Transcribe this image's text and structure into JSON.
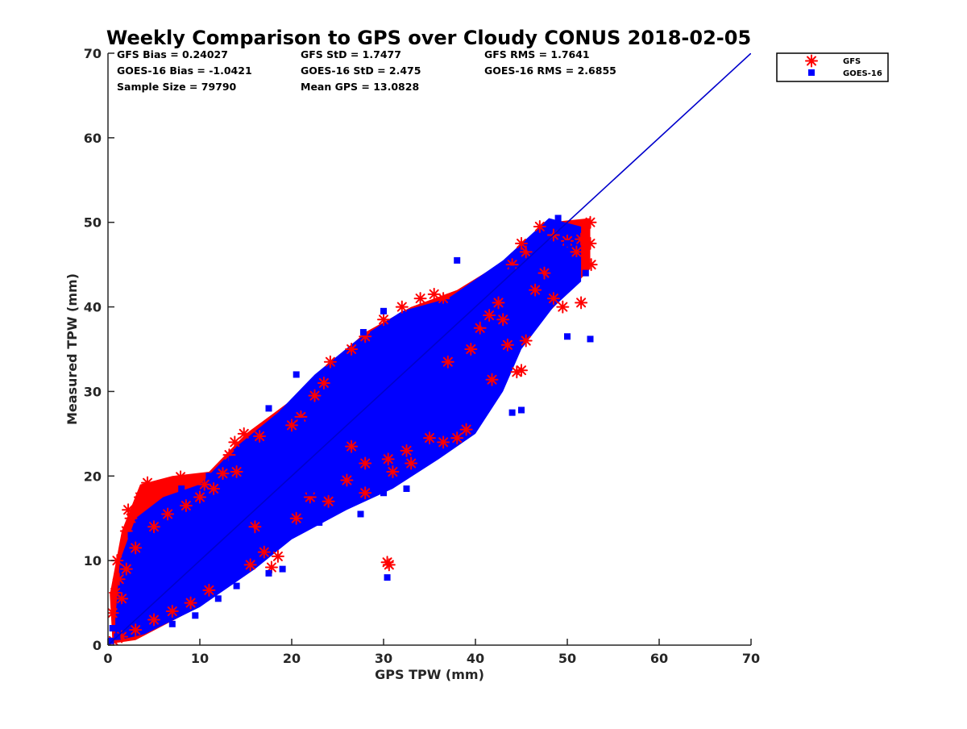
{
  "chart_data": {
    "type": "scatter",
    "title": "Weekly Comparison to GPS over Cloudy CONUS 2018-02-05",
    "xlabel": "GPS TPW (mm)",
    "ylabel": "Measured TPW (mm)",
    "xlim": [
      0,
      70
    ],
    "ylim": [
      0,
      70
    ],
    "xticks": [
      "0",
      "10",
      "20",
      "30",
      "40",
      "50",
      "60",
      "70"
    ],
    "yticks": [
      "0",
      "10",
      "20",
      "30",
      "40",
      "50",
      "60",
      "70"
    ],
    "grid": false,
    "legend_position": "outside-top-right",
    "stats": [
      [
        "GFS Bias = 0.24027",
        "GFS StD = 1.7477",
        "GFS RMS = 1.7641"
      ],
      [
        "GOES-16 Bias = -1.0421",
        "GOES-16 StD = 2.475",
        "GOES-16 RMS = 2.6855"
      ],
      [
        "Sample Size = 79790",
        "Mean GPS = 13.0828",
        ""
      ]
    ],
    "reference_line": {
      "x": [
        0,
        70
      ],
      "y": [
        0,
        70
      ],
      "color": "#0000cc"
    },
    "series": [
      {
        "name": "GFS",
        "marker": "asterisk",
        "color": "#ff0000",
        "points": [
          [
            0.5,
            3.8
          ],
          [
            0.8,
            6.2
          ],
          [
            1.2,
            7.8
          ],
          [
            1.5,
            5.5
          ],
          [
            1.0,
            10.0
          ],
          [
            2.2,
            16.0
          ],
          [
            2.5,
            15.0
          ],
          [
            2.0,
            13.5
          ],
          [
            3.5,
            17.5
          ],
          [
            4.3,
            19.2
          ],
          [
            4.8,
            18.5
          ],
          [
            5.5,
            18.2
          ],
          [
            4.0,
            16.8
          ],
          [
            7.0,
            19.0
          ],
          [
            7.9,
            19.9
          ],
          [
            9.2,
            19.5
          ],
          [
            10.5,
            19.0
          ],
          [
            11.5,
            18.5
          ],
          [
            13.2,
            22.5
          ],
          [
            13.8,
            24.0
          ],
          [
            14.8,
            25.0
          ],
          [
            16.5,
            24.7
          ],
          [
            14.0,
            20.5
          ],
          [
            12.5,
            20.3
          ],
          [
            16.0,
            14.0
          ],
          [
            17.0,
            11.0
          ],
          [
            17.8,
            9.2
          ],
          [
            15.5,
            9.5
          ],
          [
            18.5,
            10.5
          ],
          [
            20.0,
            26.0
          ],
          [
            21.0,
            27.0
          ],
          [
            22.5,
            29.5
          ],
          [
            24.2,
            33.5
          ],
          [
            23.5,
            31.0
          ],
          [
            26.5,
            35.0
          ],
          [
            28.0,
            36.5
          ],
          [
            30.0,
            38.5
          ],
          [
            32.0,
            40.0
          ],
          [
            34.0,
            41.0
          ],
          [
            35.5,
            41.5
          ],
          [
            36.5,
            41.0
          ],
          [
            26.5,
            23.5
          ],
          [
            28.0,
            21.5
          ],
          [
            30.5,
            22.0
          ],
          [
            32.5,
            23.0
          ],
          [
            35.0,
            24.5
          ],
          [
            36.5,
            24.0
          ],
          [
            38.0,
            24.5
          ],
          [
            39.0,
            25.5
          ],
          [
            33.0,
            21.5
          ],
          [
            31.0,
            20.5
          ],
          [
            37.0,
            33.5
          ],
          [
            39.5,
            35.0
          ],
          [
            40.5,
            37.5
          ],
          [
            42.5,
            40.5
          ],
          [
            43.0,
            38.5
          ],
          [
            41.5,
            39.0
          ],
          [
            41.8,
            31.4
          ],
          [
            44.5,
            32.3
          ],
          [
            45.0,
            32.5
          ],
          [
            43.5,
            35.5
          ],
          [
            45.5,
            36.0
          ],
          [
            44.0,
            45.0
          ],
          [
            45.5,
            46.5
          ],
          [
            47.0,
            49.5
          ],
          [
            48.5,
            48.5
          ],
          [
            50.0,
            47.8
          ],
          [
            51.0,
            46.5
          ],
          [
            51.5,
            48.0
          ],
          [
            52.5,
            50.0
          ],
          [
            52.5,
            47.5
          ],
          [
            52.6,
            45.0
          ],
          [
            51.5,
            40.5
          ],
          [
            49.5,
            40.0
          ],
          [
            48.5,
            41.0
          ],
          [
            47.5,
            44.0
          ],
          [
            46.5,
            42.0
          ],
          [
            45.0,
            47.5
          ],
          [
            30.4,
            9.8
          ],
          [
            30.6,
            9.5
          ],
          [
            0.6,
            0.5
          ],
          [
            1.5,
            1.0
          ],
          [
            3.0,
            1.8
          ],
          [
            5.0,
            3.0
          ],
          [
            7.0,
            4.0
          ],
          [
            9.0,
            5.0
          ],
          [
            11.0,
            6.5
          ],
          [
            2.0,
            9.0
          ],
          [
            3.0,
            11.5
          ],
          [
            5.0,
            14.0
          ],
          [
            6.5,
            15.5
          ],
          [
            8.5,
            16.5
          ],
          [
            10.0,
            17.5
          ],
          [
            20.5,
            15.0
          ],
          [
            22.0,
            17.5
          ],
          [
            24.0,
            17.0
          ],
          [
            26.0,
            19.5
          ],
          [
            28.0,
            18.0
          ]
        ]
      },
      {
        "name": "GOES-16",
        "marker": "square",
        "color": "#0000ff",
        "points": [
          [
            0.3,
            0.5
          ],
          [
            0.5,
            2.0
          ],
          [
            1.0,
            1.0
          ],
          [
            1.8,
            4.5
          ],
          [
            2.5,
            3.0
          ],
          [
            3.0,
            6.0
          ],
          [
            3.8,
            8.0
          ],
          [
            4.5,
            5.5
          ],
          [
            5.0,
            10.0
          ],
          [
            6.0,
            8.5
          ],
          [
            6.5,
            12.5
          ],
          [
            7.5,
            10.5
          ],
          [
            8.0,
            14.5
          ],
          [
            9.0,
            12.0
          ],
          [
            10.0,
            9.0
          ],
          [
            10.5,
            16.0
          ],
          [
            11.5,
            13.0
          ],
          [
            12.5,
            17.5
          ],
          [
            13.0,
            11.5
          ],
          [
            14.0,
            15.5
          ],
          [
            15.0,
            18.5
          ],
          [
            15.5,
            13.5
          ],
          [
            16.5,
            20.0
          ],
          [
            17.0,
            16.0
          ],
          [
            18.0,
            22.0
          ],
          [
            18.5,
            13.0
          ],
          [
            19.0,
            24.0
          ],
          [
            20.0,
            20.0
          ],
          [
            21.0,
            26.5
          ],
          [
            22.0,
            18.0
          ],
          [
            22.5,
            27.5
          ],
          [
            23.5,
            23.0
          ],
          [
            24.5,
            30.0
          ],
          [
            25.5,
            25.0
          ],
          [
            26.5,
            32.0
          ],
          [
            27.0,
            22.0
          ],
          [
            28.0,
            34.0
          ],
          [
            29.0,
            27.0
          ],
          [
            30.0,
            36.0
          ],
          [
            30.5,
            24.0
          ],
          [
            31.5,
            31.0
          ],
          [
            32.5,
            38.0
          ],
          [
            33.5,
            29.0
          ],
          [
            34.5,
            39.5
          ],
          [
            35.5,
            33.0
          ],
          [
            36.5,
            40.0
          ],
          [
            37.5,
            30.0
          ],
          [
            38.5,
            35.5
          ],
          [
            39.5,
            42.0
          ],
          [
            40.5,
            32.5
          ],
          [
            41.0,
            38.0
          ],
          [
            42.0,
            43.0
          ],
          [
            43.0,
            36.5
          ],
          [
            44.0,
            44.5
          ],
          [
            45.0,
            41.0
          ],
          [
            46.0,
            47.0
          ],
          [
            47.0,
            43.5
          ],
          [
            48.0,
            49.0
          ],
          [
            48.5,
            45.0
          ],
          [
            49.0,
            50.5
          ],
          [
            50.0,
            47.5
          ],
          [
            51.0,
            45.5
          ],
          [
            52.0,
            44.0
          ],
          [
            52.5,
            36.2
          ],
          [
            50.0,
            36.5
          ],
          [
            46.5,
            40.5
          ],
          [
            44.5,
            35.0
          ],
          [
            45.8,
            38.0
          ],
          [
            38.0,
            45.5
          ],
          [
            33.0,
            39.0
          ],
          [
            30.0,
            39.5
          ],
          [
            27.8,
            37.0
          ],
          [
            20.5,
            32.0
          ],
          [
            17.5,
            28.0
          ],
          [
            15.5,
            23.5
          ],
          [
            13.5,
            22.0
          ],
          [
            11.0,
            20.0
          ],
          [
            8.0,
            18.5
          ],
          [
            6.0,
            16.5
          ],
          [
            4.5,
            15.0
          ],
          [
            2.5,
            13.0
          ],
          [
            30.4,
            8.0
          ],
          [
            44.0,
            27.5
          ],
          [
            45.0,
            27.8
          ],
          [
            41.5,
            28.5
          ],
          [
            38.5,
            27.5
          ],
          [
            36.5,
            25.5
          ],
          [
            35.0,
            22.5
          ],
          [
            32.5,
            18.5
          ],
          [
            30.0,
            18.0
          ],
          [
            27.5,
            15.5
          ],
          [
            25.0,
            16.5
          ],
          [
            23.0,
            14.5
          ],
          [
            19.0,
            9.0
          ],
          [
            17.5,
            8.5
          ],
          [
            14.0,
            7.0
          ],
          [
            12.0,
            5.5
          ],
          [
            9.5,
            3.5
          ],
          [
            7.0,
            2.5
          ]
        ]
      }
    ]
  }
}
